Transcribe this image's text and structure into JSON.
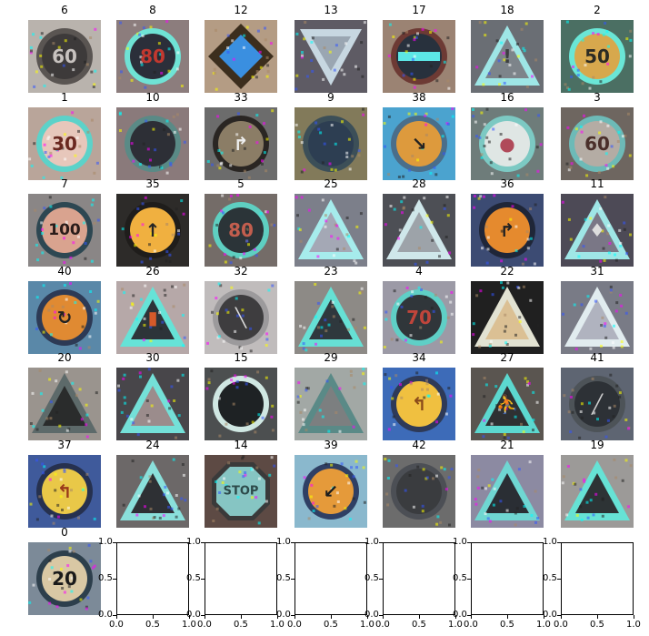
{
  "grid": {
    "cells": [
      {
        "label": "6",
        "shape": "circle",
        "bg": "#b9b3ad",
        "fill": "#3d3a3a",
        "ring": "#5a5552",
        "text": "60",
        "textColor": "#c7c2bf"
      },
      {
        "label": "8",
        "shape": "circle",
        "bg": "#8c7d7d",
        "fill": "#2b2f3a",
        "ring": "#6fe3d5",
        "text": "80",
        "textColor": "#c2382f"
      },
      {
        "label": "12",
        "shape": "diamond",
        "bg": "#b49c84",
        "fill": "#3a8fe0",
        "ring": "#3c2e1d",
        "text": "",
        "textColor": ""
      },
      {
        "label": "13",
        "shape": "tri-down",
        "bg": "#5e5b64",
        "fill": "#9aa6b2",
        "ring": "#c7d7e1",
        "text": "",
        "textColor": ""
      },
      {
        "label": "17",
        "shape": "circle",
        "bg": "#9b8373",
        "fill": "#28313d",
        "ring": "#6d3a34",
        "text": "",
        "textColor": "",
        "bar": "#5ce6e6"
      },
      {
        "label": "18",
        "shape": "tri-up",
        "bg": "#6a6e74",
        "fill": "#7d848a",
        "ring": "#9ee6e6",
        "text": "!",
        "textColor": "#3d3f41"
      },
      {
        "label": "2",
        "shape": "circle",
        "bg": "#4b6f63",
        "fill": "#d7a84d",
        "ring": "#6ae6d6",
        "text": "50",
        "textColor": "#2b2b24"
      },
      {
        "label": "1",
        "shape": "circle",
        "bg": "#b9a59a",
        "fill": "#e7c7bb",
        "ring": "#5cd2c9",
        "text": "30",
        "textColor": "#6a2820"
      },
      {
        "label": "10",
        "shape": "circle",
        "bg": "#8a7a7b",
        "fill": "#2d2f36",
        "ring": "#5a8a86",
        "text": "",
        "textColor": ""
      },
      {
        "label": "33",
        "shape": "circle",
        "bg": "#6c6c6c",
        "fill": "#8b7d66",
        "ring": "#2a2623",
        "text": "↱",
        "textColor": "#eeeeee"
      },
      {
        "label": "9",
        "shape": "circle",
        "bg": "#827a5a",
        "fill": "#2d3e52",
        "ring": "#3c4f58",
        "text": "",
        "textColor": ""
      },
      {
        "label": "38",
        "shape": "circle",
        "bg": "#4ba3cf",
        "fill": "#dd9a3d",
        "ring": "#4a6e8a",
        "text": "↘",
        "textColor": "#222222"
      },
      {
        "label": "16",
        "shape": "circle",
        "bg": "#6e7c7a",
        "fill": "#dfe6e4",
        "ring": "#7cc9c3",
        "text": "●",
        "textColor": "#b04a5a"
      },
      {
        "label": "3",
        "shape": "circle",
        "bg": "#6e6660",
        "fill": "#b4aca4",
        "ring": "#6dbab7",
        "text": "60",
        "textColor": "#4a2f2a"
      },
      {
        "label": "7",
        "shape": "circle",
        "bg": "#8a8686",
        "fill": "#d9a38f",
        "ring": "#2d4752",
        "text": "100",
        "textColor": "#2a1c1a"
      },
      {
        "label": "35",
        "shape": "circle",
        "bg": "#2d2b29",
        "fill": "#f0b040",
        "ring": "#1f1d1b",
        "text": "↑",
        "textColor": "#252525"
      },
      {
        "label": "5",
        "shape": "circle",
        "bg": "#746c68",
        "fill": "#2b3438",
        "ring": "#5ecfc1",
        "text": "80",
        "textColor": "#c25e4e"
      },
      {
        "label": "25",
        "shape": "tri-up",
        "bg": "#7c7f8a",
        "fill": "#a4a8b5",
        "ring": "#a6ecec",
        "text": "",
        "textColor": ""
      },
      {
        "label": "28",
        "shape": "tri-up",
        "bg": "#4d4f55",
        "fill": "#9da3a9",
        "ring": "#cfe7ea",
        "text": "",
        "textColor": ""
      },
      {
        "label": "36",
        "shape": "circle",
        "bg": "#3c4b73",
        "fill": "#e58a2e",
        "ring": "#1f2638",
        "text": "↱",
        "textColor": "#222222"
      },
      {
        "label": "11",
        "shape": "tri-up",
        "bg": "#4d4a56",
        "fill": "#7a7786",
        "ring": "#9fe6e6",
        "text": "♦",
        "textColor": "#dddddd"
      },
      {
        "label": "40",
        "shape": "circle",
        "bg": "#5a88a8",
        "fill": "#e08a32",
        "ring": "#2d3a55",
        "text": "↻",
        "textColor": "#222222"
      },
      {
        "label": "26",
        "shape": "tri-up",
        "bg": "#b6a8a8",
        "fill": "#2d3439",
        "ring": "#66e3d7",
        "text": "▮",
        "textColor": "#d65a2a"
      },
      {
        "label": "32",
        "shape": "circle",
        "bg": "#c0bcbc",
        "fill": "#3e3d3f",
        "ring": "#9c9a9c",
        "text": "╲",
        "textColor": "#dcdcdc"
      },
      {
        "label": "23",
        "shape": "tri-up",
        "bg": "#8d8a86",
        "fill": "#2f383d",
        "ring": "#66e0d4",
        "text": "",
        "textColor": ""
      },
      {
        "label": "4",
        "shape": "circle",
        "bg": "#9c9aa6",
        "fill": "#30363a",
        "ring": "#5fcfc6",
        "text": "70",
        "textColor": "#c0453b"
      },
      {
        "label": "22",
        "shape": "tri-up",
        "bg": "#202020",
        "fill": "#dbc094",
        "ring": "#e2e2d2",
        "text": "",
        "textColor": ""
      },
      {
        "label": "31",
        "shape": "tri-up",
        "bg": "#797b86",
        "fill": "#b0b3bf",
        "ring": "#e1ecef",
        "text": "",
        "textColor": ""
      },
      {
        "label": "20",
        "shape": "tri-up",
        "bg": "#9a948e",
        "fill": "#2a2c2c",
        "ring": "#5d6a6a",
        "text": "",
        "textColor": ""
      },
      {
        "label": "30",
        "shape": "tri-up",
        "bg": "#48464a",
        "fill": "#9b8c8c",
        "ring": "#74e0d8",
        "text": "",
        "textColor": ""
      },
      {
        "label": "15",
        "shape": "circle",
        "bg": "#4c4f50",
        "fill": "#1e2224",
        "ring": "#cfe7e2",
        "text": "",
        "textColor": ""
      },
      {
        "label": "29",
        "shape": "tri-up",
        "bg": "#a2a8a5",
        "fill": "#7c7f80",
        "ring": "#5a8a87",
        "text": "",
        "textColor": ""
      },
      {
        "label": "34",
        "shape": "circle",
        "bg": "#3d6bb8",
        "fill": "#f0c040",
        "ring": "#2e3a58",
        "text": "↰",
        "textColor": "#8a4a1a"
      },
      {
        "label": "27",
        "shape": "tri-up",
        "bg": "#5a5550",
        "fill": "#2e3032",
        "ring": "#5cd8cf",
        "text": "⛹",
        "textColor": "#d07868"
      },
      {
        "label": "41",
        "shape": "circle",
        "bg": "#5e6572",
        "fill": "#2d3136",
        "ring": "#4d5358",
        "text": "╱",
        "textColor": "#cfcfcf"
      },
      {
        "label": "37",
        "shape": "circle",
        "bg": "#3f5a9b",
        "fill": "#e9c848",
        "ring": "#26314f",
        "text": "↰",
        "textColor": "#9a3a1a"
      },
      {
        "label": "24",
        "shape": "tri-up",
        "bg": "#6c6868",
        "fill": "#2e3034",
        "ring": "#8ae0db",
        "text": "",
        "textColor": ""
      },
      {
        "label": "14",
        "shape": "octagon",
        "bg": "#5d4a44",
        "fill": "#86c5c3",
        "ring": "#3a3a3a",
        "text": "STOP",
        "textColor": "#2d4a4a"
      },
      {
        "label": "39",
        "shape": "circle",
        "bg": "#8ab8cd",
        "fill": "#e59a3a",
        "ring": "#2f3f64",
        "text": "↙",
        "textColor": "#1d1d1d"
      },
      {
        "label": "42",
        "shape": "circle",
        "bg": "#6c6c6c",
        "fill": "#3a3c3f",
        "ring": "#4c4f55",
        "text": "",
        "textColor": ""
      },
      {
        "label": "21",
        "shape": "tri-up",
        "bg": "#8c8aa2",
        "fill": "#2a2e34",
        "ring": "#6fd6d2",
        "text": "",
        "textColor": ""
      },
      {
        "label": "19",
        "shape": "tri-up",
        "bg": "#9c9a98",
        "fill": "#2d3335",
        "ring": "#66e2d5",
        "text": "",
        "textColor": ""
      },
      {
        "label": "0",
        "shape": "circle",
        "bg": "#7c8a98",
        "fill": "#d9c8a4",
        "ring": "#2d3f4c",
        "text": "20",
        "textColor": "#1a1a1a"
      }
    ],
    "empty_axes": {
      "count": 6,
      "xticks": [
        "0.0",
        "0.5",
        "1.0"
      ],
      "yticks": [
        "0.0",
        "0.5",
        "1.0"
      ]
    }
  }
}
